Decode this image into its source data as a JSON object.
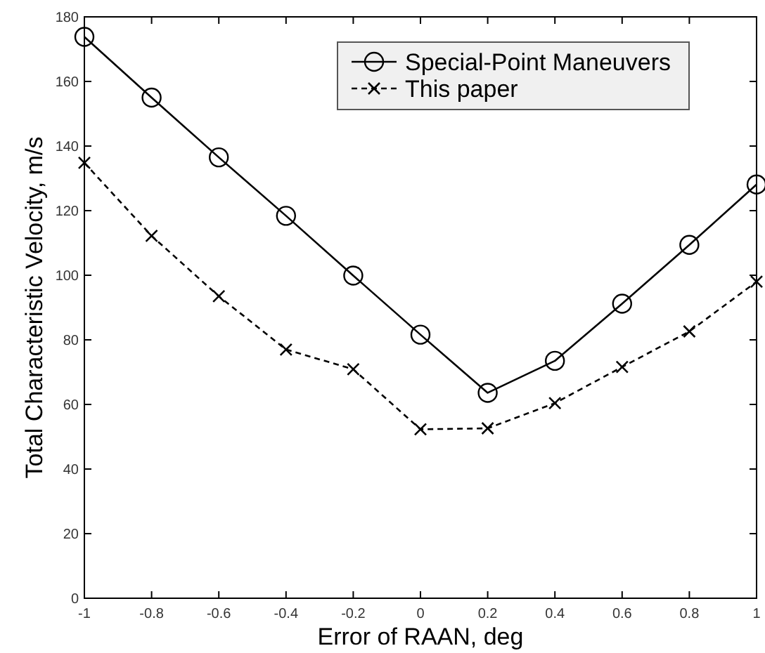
{
  "chart_data": {
    "type": "line",
    "xlabel": "Error of RAAN, deg",
    "ylabel": "Total Characteristic Velocity, m/s",
    "x": [
      -1,
      -0.8,
      -0.6,
      -0.4,
      -0.2,
      0,
      0.2,
      0.4,
      0.6,
      0.8,
      1
    ],
    "series": [
      {
        "name": "Special-Point Maneuvers",
        "color": "#000000",
        "marker": "circle",
        "line_style": "solid",
        "values": [
          173.8,
          155,
          136.5,
          118.4,
          99.9,
          81.6,
          63.6,
          73.5,
          91.2,
          109.4,
          128.1
        ]
      },
      {
        "name": "This paper",
        "color": "#000000",
        "marker": "cross",
        "line_style": "dashed",
        "values": [
          134.8,
          112.2,
          93.5,
          77,
          70.9,
          52.3,
          52.6,
          60.4,
          71.6,
          82.6,
          98
        ]
      }
    ],
    "xlim": [
      -1,
      1
    ],
    "xticks": [
      -1,
      -0.8,
      -0.6,
      -0.4,
      -0.2,
      0,
      0.2,
      0.4,
      0.6,
      0.8,
      1
    ],
    "ylim": [
      0,
      180
    ],
    "yticks": [
      0,
      20,
      40,
      60,
      80,
      100,
      120,
      140,
      160,
      180
    ],
    "grid": false,
    "legend": "top right"
  }
}
